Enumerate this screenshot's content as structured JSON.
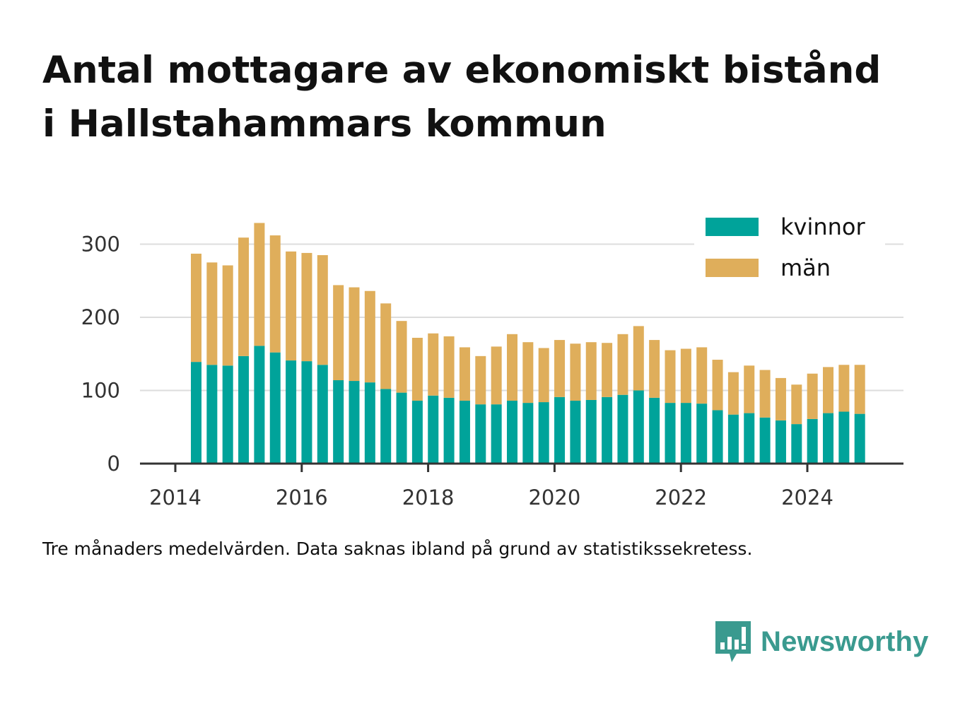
{
  "title_lines": [
    "Antal mottagare av ekonomiskt bistånd",
    "i Hallstahammars kommun"
  ],
  "note": "Tre månaders medelvärden. Data saknas ibland på grund av statistikssekretess.",
  "brand": {
    "name": "Newsworthy",
    "color": "#3a9a8f",
    "icon": "bar-chart-speech-bubble-icon"
  },
  "chart_data": {
    "type": "bar",
    "stacked": true,
    "title": "Antal mottagare av ekonomiskt bistånd i Hallstahammars kommun",
    "xlabel": "",
    "ylabel": "",
    "xlim": [
      2013.7,
      2025.45
    ],
    "ylim": [
      0,
      300
    ],
    "x_ticks": [
      2014,
      2016,
      2018,
      2020,
      2022,
      2024
    ],
    "y_ticks": [
      0,
      100,
      200,
      300
    ],
    "grid": "horizontal",
    "legend_position": "top-right",
    "x": [
      2014.33,
      2014.58,
      2014.83,
      2015.08,
      2015.33,
      2015.58,
      2015.83,
      2016.08,
      2016.33,
      2016.58,
      2016.83,
      2017.08,
      2017.33,
      2017.58,
      2017.83,
      2018.08,
      2018.33,
      2018.58,
      2018.83,
      2019.08,
      2019.33,
      2019.58,
      2019.83,
      2020.08,
      2020.33,
      2020.58,
      2020.83,
      2021.08,
      2021.33,
      2021.58,
      2021.83,
      2022.08,
      2022.33,
      2022.58,
      2022.83,
      2023.08,
      2023.33,
      2023.58,
      2023.83,
      2024.08,
      2024.33,
      2024.58,
      2024.83
    ],
    "series": [
      {
        "name": "kvinnor",
        "color": "#00a39a",
        "values": [
          139,
          135,
          134,
          147,
          161,
          152,
          141,
          140,
          135,
          114,
          113,
          111,
          102,
          97,
          86,
          93,
          90,
          86,
          81,
          81,
          86,
          83,
          84,
          91,
          86,
          87,
          91,
          94,
          100,
          90,
          83,
          83,
          82,
          73,
          67,
          69,
          63,
          59,
          54,
          61,
          69,
          71,
          68
        ]
      },
      {
        "name": "män",
        "color": "#dfae5b",
        "values": [
          148,
          140,
          137,
          162,
          168,
          160,
          149,
          148,
          150,
          130,
          128,
          125,
          117,
          98,
          86,
          85,
          84,
          73,
          66,
          79,
          91,
          83,
          74,
          78,
          78,
          79,
          74,
          83,
          88,
          79,
          72,
          74,
          77,
          69,
          58,
          65,
          65,
          58,
          54,
          62,
          63,
          64,
          67
        ]
      }
    ]
  }
}
